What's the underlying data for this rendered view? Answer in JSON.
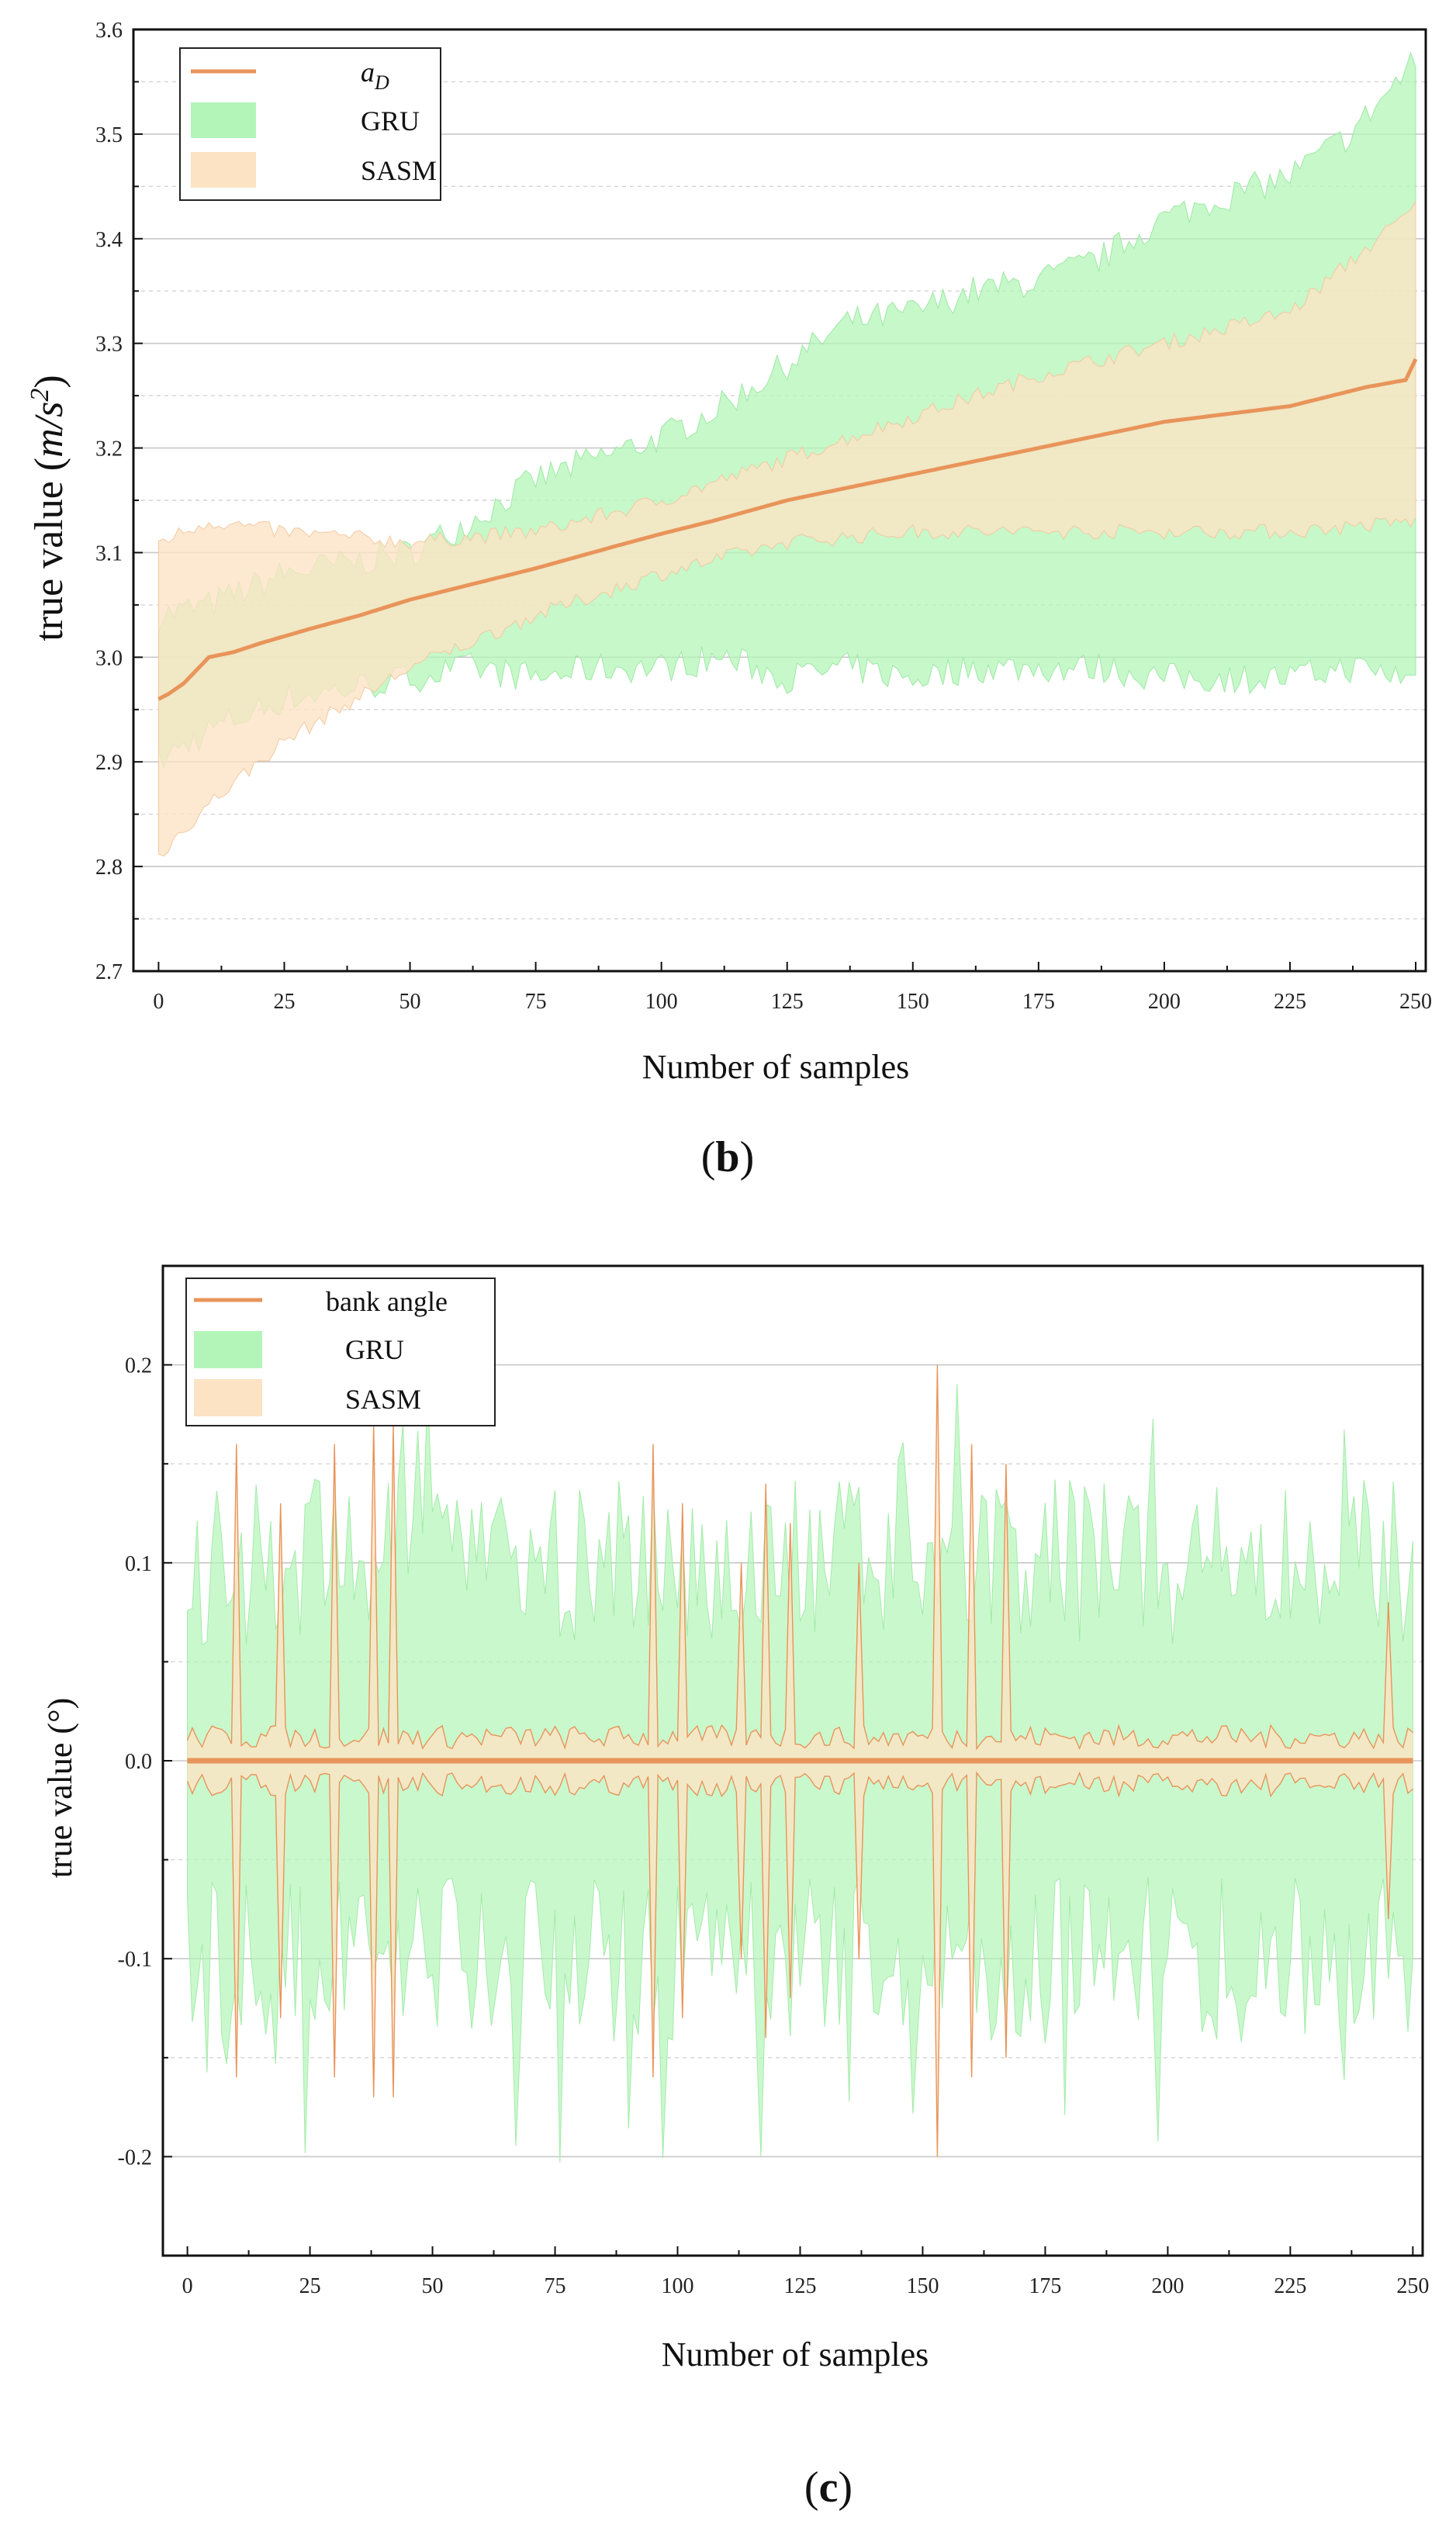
{
  "chart_data": [
    {
      "panel": "b",
      "type": "area",
      "title": "",
      "xlabel": "Number of samples",
      "ylabel": "true value",
      "ylabel_unit_base": "m/s",
      "ylabel_unit_exp": "2",
      "xlim": [
        -5,
        252
      ],
      "ylim": [
        2.7,
        3.6
      ],
      "xticks": [
        0,
        25,
        50,
        75,
        100,
        125,
        150,
        175,
        200,
        225,
        250
      ],
      "yticks": [
        2.7,
        2.8,
        2.9,
        3.0,
        3.1,
        3.2,
        3.3,
        3.4,
        3.5,
        3.6
      ],
      "ytick_labels": [
        "2.7",
        "2.8",
        "2.9",
        "3.0",
        "3.1",
        "3.2",
        "3.3",
        "3.4",
        "3.5",
        "3.6"
      ],
      "legend": {
        "position": "top-left",
        "entries": [
          {
            "label_main": "a",
            "label_sub": "D",
            "kind": "line",
            "color": "#E8945A"
          },
          {
            "label_main": "GRU",
            "kind": "fill",
            "color": "#B3F5B8"
          },
          {
            "label_main": "SASM",
            "kind": "fill",
            "color": "#FCE3C4"
          }
        ]
      },
      "series": [
        {
          "name": "a_D",
          "x": [
            0,
            2,
            5,
            10,
            15,
            20,
            25,
            30,
            40,
            50,
            60,
            75,
            90,
            100,
            110,
            125,
            150,
            175,
            200,
            225,
            240,
            248,
            250
          ],
          "values": [
            2.96,
            2.965,
            2.975,
            3.0,
            3.005,
            3.013,
            3.02,
            3.027,
            3.04,
            3.055,
            3.067,
            3.085,
            3.105,
            3.118,
            3.13,
            3.15,
            3.175,
            3.2,
            3.225,
            3.24,
            3.258,
            3.265,
            3.285
          ]
        },
        {
          "name": "GRU",
          "band": true,
          "x": [
            0,
            10,
            25,
            50,
            62,
            75,
            87,
            100,
            112,
            125,
            137,
            150,
            162,
            175,
            187,
            200,
            212,
            225,
            237,
            250
          ],
          "upper": [
            3.04,
            3.05,
            3.08,
            3.1,
            3.13,
            3.17,
            3.19,
            3.21,
            3.24,
            3.28,
            3.32,
            3.33,
            3.35,
            3.36,
            3.38,
            3.42,
            3.44,
            3.46,
            3.5,
            3.57
          ],
          "lower": [
            2.9,
            2.93,
            2.96,
            2.98,
            2.99,
            2.98,
            2.99,
            2.99,
            3.0,
            2.98,
            2.99,
            2.98,
            2.99,
            2.99,
            2.99,
            2.98,
            2.98,
            2.98,
            2.99,
            2.98
          ]
        },
        {
          "name": "SASM",
          "band": true,
          "x": [
            0,
            10,
            25,
            50,
            75,
            100,
            125,
            150,
            175,
            200,
            225,
            250
          ],
          "upper": [
            3.11,
            3.13,
            3.12,
            3.11,
            3.12,
            3.15,
            3.19,
            3.23,
            3.27,
            3.3,
            3.33,
            3.43
          ],
          "lower": [
            2.81,
            2.86,
            2.92,
            2.99,
            3.04,
            3.08,
            3.11,
            3.12,
            3.12,
            3.12,
            3.12,
            3.13
          ]
        }
      ]
    },
    {
      "panel": "c",
      "type": "area",
      "title": "",
      "xlabel": "Number of samples",
      "ylabel": "true value",
      "ylabel_unit": "(°)",
      "xlim": [
        -5,
        252
      ],
      "ylim": [
        -0.25,
        0.25
      ],
      "xticks": [
        0,
        25,
        50,
        75,
        100,
        125,
        150,
        175,
        200,
        225,
        250
      ],
      "yticks": [
        -0.2,
        -0.1,
        0.0,
        0.1,
        0.2
      ],
      "ytick_labels": [
        "-0.2",
        "-0.1",
        "0.0",
        "0.1",
        "0.2"
      ],
      "legend": {
        "position": "top-left",
        "entries": [
          {
            "label_main": "bank angle",
            "kind": "line",
            "color": "#E8945A"
          },
          {
            "label_main": "GRU",
            "kind": "fill",
            "color": "#B3F5B8"
          },
          {
            "label_main": "SASM",
            "kind": "fill",
            "color": "#FCE3C4"
          }
        ]
      },
      "series": [
        {
          "name": "bank angle",
          "x": [
            0,
            250
          ],
          "values": [
            0.0,
            0.0
          ]
        },
        {
          "name": "GRU",
          "band": true,
          "symmetric": true,
          "typical_half_width": 0.13,
          "peak_half_width": 0.21
        },
        {
          "name": "SASM",
          "band": true,
          "symmetric": true,
          "typical_half_width": 0.012,
          "spike_x": [
            10,
            19,
            30,
            38,
            42,
            95,
            101,
            113,
            118,
            123,
            137,
            153,
            160,
            167,
            245
          ],
          "spike_values": [
            0.16,
            0.13,
            0.16,
            0.17,
            0.17,
            0.16,
            0.13,
            0.1,
            0.14,
            0.12,
            0.1,
            0.2,
            0.16,
            0.15,
            0.08
          ]
        }
      ]
    }
  ],
  "captions": {
    "b": "b",
    "c": "c"
  }
}
